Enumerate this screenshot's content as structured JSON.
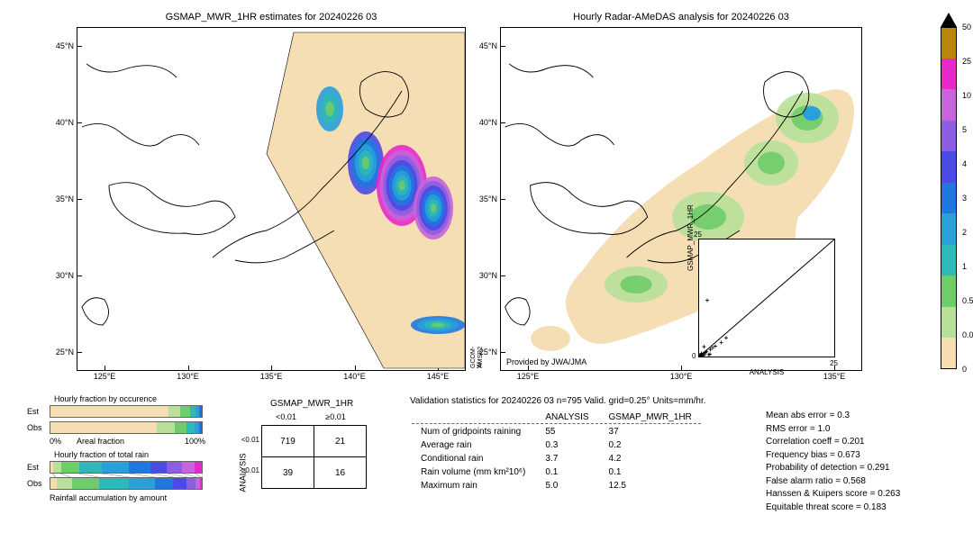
{
  "colors": {
    "bg": "#ffffff",
    "land_wheat": "#f5deb3",
    "precip": [
      "#f5deb3",
      "#b8e09a",
      "#6ecc6a",
      "#2eb8b8",
      "#29a0d8",
      "#1f78e0",
      "#4a4ae6",
      "#8c5fe0",
      "#c763db",
      "#e829c9",
      "#b8860b"
    ]
  },
  "colorbar": {
    "ticks": [
      "0",
      "0.01",
      "0.5",
      "1",
      "2",
      "3",
      "4",
      "5",
      "10",
      "25",
      "50"
    ],
    "arrow_color": "#000000"
  },
  "map_left": {
    "title": "GSMAP_MWR_1HR estimates for 20240226 03",
    "yticks": [
      "25°N",
      "30°N",
      "35°N",
      "40°N",
      "45°N"
    ],
    "xticks": [
      "125°E",
      "130°E",
      "135°E",
      "140°E",
      "145°E"
    ],
    "sat_labels": [
      "GCOM-W",
      "AMSR2"
    ]
  },
  "map_right": {
    "title": "Hourly Radar-AMeDAS analysis for 20240226 03",
    "yticks": [
      "25°N",
      "30°N",
      "35°N",
      "40°N",
      "45°N"
    ],
    "xticks": [
      "125°E",
      "130°E",
      "135°E"
    ],
    "provider": "Provided by JWA/JMA"
  },
  "inset": {
    "xlabel": "ANALYSIS",
    "ylabel": "GSMAP_MWR_1HR",
    "ticks": [
      "0",
      "25"
    ],
    "points": [
      [
        0.5,
        0.4
      ],
      [
        1.2,
        0.8
      ],
      [
        0.3,
        0.2
      ],
      [
        2.1,
        1.5
      ],
      [
        0.9,
        0.3
      ],
      [
        1.4,
        1.1
      ],
      [
        3.0,
        2.2
      ],
      [
        0.6,
        0.1
      ],
      [
        1.1,
        0.9
      ],
      [
        0.4,
        0.7
      ],
      [
        2.5,
        1.9
      ],
      [
        0.7,
        0.5
      ],
      [
        1.8,
        0.4
      ],
      [
        0.2,
        0.3
      ],
      [
        4.1,
        3.0
      ],
      [
        0.9,
        2.1
      ],
      [
        1.5,
        12.0
      ],
      [
        5.0,
        4.0
      ],
      [
        0.1,
        0.2
      ],
      [
        0.8,
        0.6
      ],
      [
        2.0,
        0.5
      ]
    ]
  },
  "occurrence": {
    "title": "Hourly fraction by occurence",
    "rows": [
      "Est",
      "Obs"
    ],
    "xaxis": [
      "0%",
      "100%"
    ],
    "xaxis_label": "Areal fraction",
    "est_fracs": [
      0.78,
      0.08,
      0.06,
      0.04,
      0.02,
      0.015,
      0.005
    ],
    "obs_fracs": [
      0.7,
      0.12,
      0.08,
      0.05,
      0.03,
      0.015,
      0.005
    ]
  },
  "totalrain": {
    "title": "Hourly fraction of total rain",
    "rows": [
      "Est",
      "Obs"
    ],
    "footer": "Rainfall accumulation by amount",
    "est_fracs": [
      0.02,
      0.05,
      0.12,
      0.15,
      0.18,
      0.14,
      0.11,
      0.1,
      0.08,
      0.05
    ],
    "obs_fracs": [
      0.04,
      0.1,
      0.18,
      0.2,
      0.17,
      0.12,
      0.09,
      0.06,
      0.03,
      0.01
    ]
  },
  "contingency": {
    "col_title": "GSMAP_MWR_1HR",
    "row_title": "ANALYSIS",
    "col_heads": [
      "<0.01",
      "≥0.01"
    ],
    "row_heads": [
      "<0.01",
      "≥0.01"
    ],
    "cells": [
      [
        "719",
        "21"
      ],
      [
        "39",
        "16"
      ]
    ]
  },
  "validation": {
    "title": "Validation statistics for 20240226 03  n=795 Valid. grid=0.25° Units=mm/hr.",
    "col_heads": [
      "ANALYSIS",
      "GSMAP_MWR_1HR"
    ],
    "rows": [
      {
        "label": "Num of gridpoints raining",
        "a": "55",
        "b": "37"
      },
      {
        "label": "Average rain",
        "a": "0.3",
        "b": "0.2"
      },
      {
        "label": "Conditional rain",
        "a": "3.7",
        "b": "4.2"
      },
      {
        "label": "Rain volume (mm km²10⁶)",
        "a": "0.1",
        "b": "0.1"
      },
      {
        "label": "Maximum rain",
        "a": "5.0",
        "b": "12.5"
      }
    ]
  },
  "metrics": [
    "Mean abs error =    0.3",
    "RMS error =    1.0",
    "Correlation coeff =  0.201",
    "Frequency bias =  0.673",
    "Probability of detection =  0.291",
    "False alarm ratio =  0.568",
    "Hanssen & Kuipers score =  0.263",
    "Equitable threat score =  0.183"
  ]
}
